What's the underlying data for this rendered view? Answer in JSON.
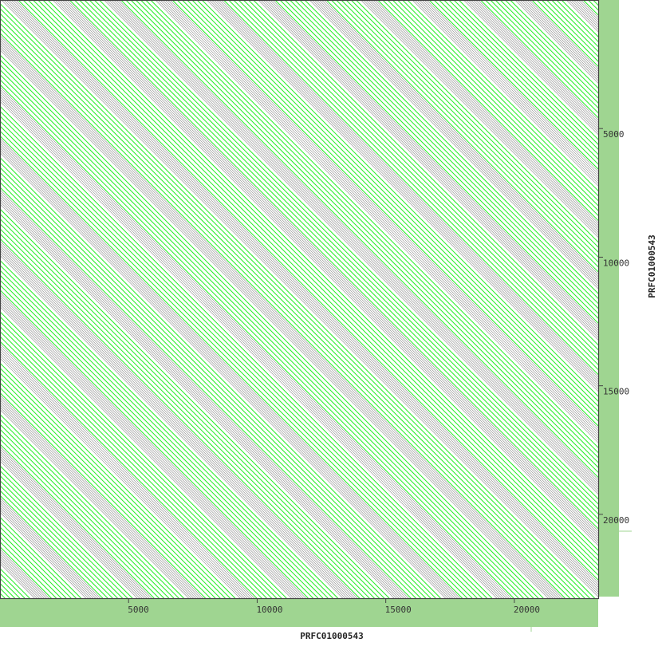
{
  "chart_data": {
    "type": "scatter",
    "subtype": "dot-plot",
    "xlabel": "PRFC01000543",
    "ylabel": "PRFC01000543",
    "xlim": [
      0,
      23260
    ],
    "ylim": [
      0,
      23260
    ],
    "y_direction": "top-to-bottom",
    "x_ticks": [
      5000,
      10000,
      15000,
      20000
    ],
    "y_ticks": [
      5000,
      10000,
      15000,
      20000
    ],
    "x_tick_labels": [
      "5000",
      "10000",
      "15000",
      "20000"
    ],
    "y_tick_labels": [
      "5000",
      "10000",
      "15000",
      "20000"
    ],
    "match_orientation": "forward diagonals (repeat structure)",
    "grid": false,
    "colors": {
      "match": "#22ee22",
      "dense_match": "#8a8a8a",
      "coverage_bar": "#9fd591",
      "axis": "#444444"
    }
  }
}
